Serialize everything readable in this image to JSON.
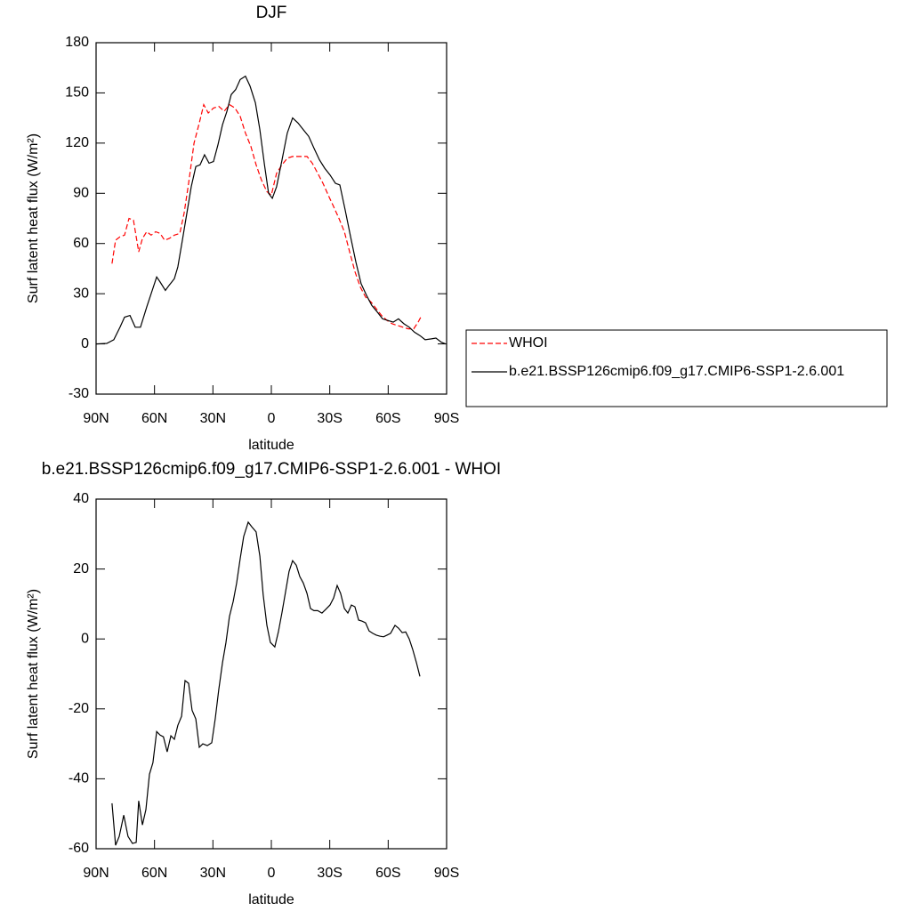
{
  "chart_data": [
    {
      "type": "line",
      "title": "DJF",
      "xlabel": "latitude",
      "ylabel": "Surf latent heat flux (W/m²)",
      "xlim": [
        90,
        -90
      ],
      "xticks": [
        {
          "value": 90,
          "label": "90N"
        },
        {
          "value": 60,
          "label": "60N"
        },
        {
          "value": 30,
          "label": "30N"
        },
        0,
        {
          "value": -30,
          "label": "30S"
        },
        {
          "value": -60,
          "label": "60S"
        },
        {
          "value": -90,
          "label": "90S"
        }
      ],
      "ylim": [
        -30,
        180
      ],
      "yticks": [
        -30,
        0,
        30,
        60,
        90,
        120,
        150,
        180
      ],
      "series": [
        {
          "name": "WHOI",
          "color": "#ff0000",
          "dashed": true,
          "x": [
            81.8,
            80,
            77.7,
            75.4,
            73.1,
            70.8,
            68.1,
            66.2,
            64,
            61.7,
            59.4,
            57.1,
            54.8,
            52.5,
            49.8,
            47,
            44.8,
            42.5,
            39.7,
            37,
            34.7,
            32.4,
            29.7,
            27,
            24.2,
            21.5,
            18.7,
            16,
            13.3,
            10.5,
            7.8,
            5.1,
            2.3,
            0,
            -2.7,
            -5.5,
            -8.2,
            -10.9,
            -14.6,
            -18.3,
            -21,
            -23.8,
            -26.5,
            -29.2,
            -32,
            -34.7,
            -37.5,
            -40.2,
            -43,
            -45.7,
            -48.4,
            -51.2,
            -53.9,
            -56.6,
            -59.4,
            -62.1,
            -64.9,
            -67.6,
            -70.3,
            -73.1,
            -75.4,
            -77.2
          ],
          "values": [
            48,
            62,
            64,
            65,
            75,
            74,
            55,
            63,
            67,
            65,
            67,
            66,
            62,
            63,
            65,
            66,
            78,
            96,
            120,
            132,
            143,
            138,
            141,
            142,
            139,
            143,
            141,
            136,
            126,
            118,
            107,
            98,
            91,
            89,
            102,
            107,
            111,
            112,
            112,
            112,
            108,
            102,
            96,
            89,
            82,
            75,
            67,
            55,
            43,
            34,
            28,
            25,
            21,
            17,
            14,
            12,
            11,
            10,
            9,
            9,
            13,
            17
          ]
        },
        {
          "name": "b.e21.BSSP126cmip6.f09_g17.CMIP6-SSP1-2.6.001",
          "color": "#000000",
          "dashed": false,
          "x": [
            90,
            84.5,
            80.9,
            77.7,
            75.4,
            72.6,
            69.9,
            67.2,
            64,
            61.7,
            58.9,
            57.1,
            54.4,
            52.5,
            49.8,
            48,
            45.7,
            43.4,
            41.1,
            38.8,
            36.6,
            34.3,
            32,
            29.7,
            27.4,
            25.1,
            22.8,
            20.6,
            18.3,
            16,
            13.3,
            10.9,
            8.2,
            5.9,
            3.5,
            1.4,
            -0.5,
            -2.7,
            -5.5,
            -8.2,
            -10.9,
            -13.7,
            -16.4,
            -19.2,
            -21.9,
            -24.7,
            -27.4,
            -30.1,
            -32.9,
            -35.2,
            -37.9,
            -40.7,
            -43.4,
            -46.1,
            -48.9,
            -51.6,
            -54.4,
            -57.1,
            -59.8,
            -62.6,
            -65.3,
            -68.1,
            -70.8,
            -73.5,
            -76.3,
            -79,
            -82.2,
            -84.5,
            -87.3,
            -89.5
          ],
          "values": [
            0,
            0.3,
            2.5,
            10,
            16,
            17,
            10,
            10,
            22,
            30,
            40,
            37,
            32,
            35,
            39,
            46,
            62,
            78,
            94,
            106,
            107,
            113,
            108,
            109,
            119,
            131,
            139,
            149,
            152,
            158,
            160,
            154,
            144,
            128,
            107,
            90,
            87,
            94,
            110,
            126,
            135,
            132,
            128,
            124,
            117,
            110,
            105,
            101,
            96,
            95,
            80,
            64,
            49,
            36,
            29,
            23,
            19,
            15,
            14,
            13,
            15,
            12,
            10,
            7,
            5,
            2.5,
            3,
            3.5,
            1,
            0
          ]
        }
      ]
    },
    {
      "type": "line",
      "title": "b.e21.BSSP126cmip6.f09_g17.CMIP6-SSP1-2.6.001 - WHOI",
      "xlabel": "latitude",
      "ylabel": "Surf latent heat flux (W/m²)",
      "xlim": [
        90,
        -90
      ],
      "xticks": [
        {
          "value": 90,
          "label": "90N"
        },
        {
          "value": 60,
          "label": "60N"
        },
        {
          "value": 30,
          "label": "30N"
        },
        0,
        {
          "value": -30,
          "label": "30S"
        },
        {
          "value": -60,
          "label": "60S"
        },
        {
          "value": -90,
          "label": "90S"
        }
      ],
      "ylim": [
        -60,
        40
      ],
      "yticks": [
        -60,
        -40,
        -20,
        0,
        20,
        40
      ],
      "series": [
        {
          "color": "#000000",
          "dashed": false,
          "x": [
            81.8,
            80,
            78.1,
            75.8,
            73.6,
            71.3,
            69.4,
            68.1,
            66.2,
            64.4,
            62.6,
            60.8,
            58.9,
            57.1,
            55.4,
            53.5,
            51.6,
            49.8,
            48,
            46.1,
            44.3,
            42.5,
            40.7,
            38.8,
            37,
            35.2,
            32.9,
            30.6,
            28.8,
            27,
            25.1,
            23.3,
            21.5,
            19.6,
            17.8,
            16,
            14.2,
            11.9,
            10.1,
            7.8,
            5.9,
            4.2,
            2.3,
            0.5,
            -1.8,
            -3.6,
            -5.5,
            -7.3,
            -9.1,
            -10.9,
            -12.8,
            -14.6,
            -16.4,
            -18.3,
            -20.1,
            -21.9,
            -23.8,
            -26,
            -27.8,
            -30.1,
            -32,
            -33.8,
            -35.6,
            -37.5,
            -39.3,
            -41.1,
            -42.9,
            -44.8,
            -46.6,
            -48.4,
            -50.2,
            -52.1,
            -53.9,
            -55.7,
            -57.6,
            -59.4,
            -61.2,
            -63.5,
            -65.3,
            -67.2,
            -69,
            -70.8,
            -72.6,
            -74.5,
            -76.3
          ],
          "values": [
            -47,
            -59,
            -56.5,
            -50.4,
            -56.5,
            -58.5,
            -58.2,
            -46.3,
            -53.2,
            -48.8,
            -38.7,
            -35.4,
            -26.5,
            -27.5,
            -28,
            -32.3,
            -27.7,
            -28.7,
            -24.7,
            -22.1,
            -11.9,
            -12.7,
            -20.4,
            -22.9,
            -31,
            -30,
            -30.5,
            -29.7,
            -22.7,
            -14.5,
            -6.8,
            -1,
            6.4,
            10.7,
            16,
            23,
            29.3,
            33.4,
            32.1,
            30.6,
            23.7,
            12.7,
            3.9,
            -1,
            -2.3,
            2,
            7.6,
            13.5,
            19.3,
            22.4,
            21.1,
            17.8,
            16,
            13,
            8.7,
            8.1,
            8.1,
            7.4,
            8.4,
            9.7,
            11.7,
            15.3,
            13,
            8.7,
            7.4,
            9.7,
            9.2,
            5.4,
            5.1,
            4.6,
            2.3,
            1.6,
            1.1,
            0.8,
            0.6,
            1.1,
            1.6,
            3.9,
            3.1,
            1.8,
            2,
            0,
            -3,
            -6.8,
            -10.7
          ]
        }
      ]
    }
  ]
}
